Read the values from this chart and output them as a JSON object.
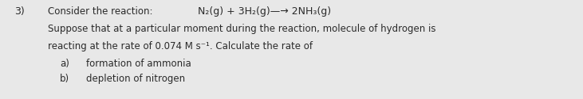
{
  "background_color": "#e8e8e8",
  "text_color": "#2a2a2a",
  "number": "3)",
  "line1_label": "Consider the reaction:",
  "line1_equation": "N₂(g) + 3H₂(g)—→ 2NH₃(g)",
  "line2": "Suppose that at a particular moment during the reaction, molecule of hydrogen is",
  "line3": "reacting at the rate of 0.074 M s⁻¹. Calculate the rate of",
  "item_a_label": "a)",
  "item_a_text": "formation of ammonia",
  "item_b_label": "b)",
  "item_b_text": "depletion of nitrogen",
  "font_size_main": 8.5,
  "font_size_number": 9.0,
  "font_family": "DejaVu Sans"
}
